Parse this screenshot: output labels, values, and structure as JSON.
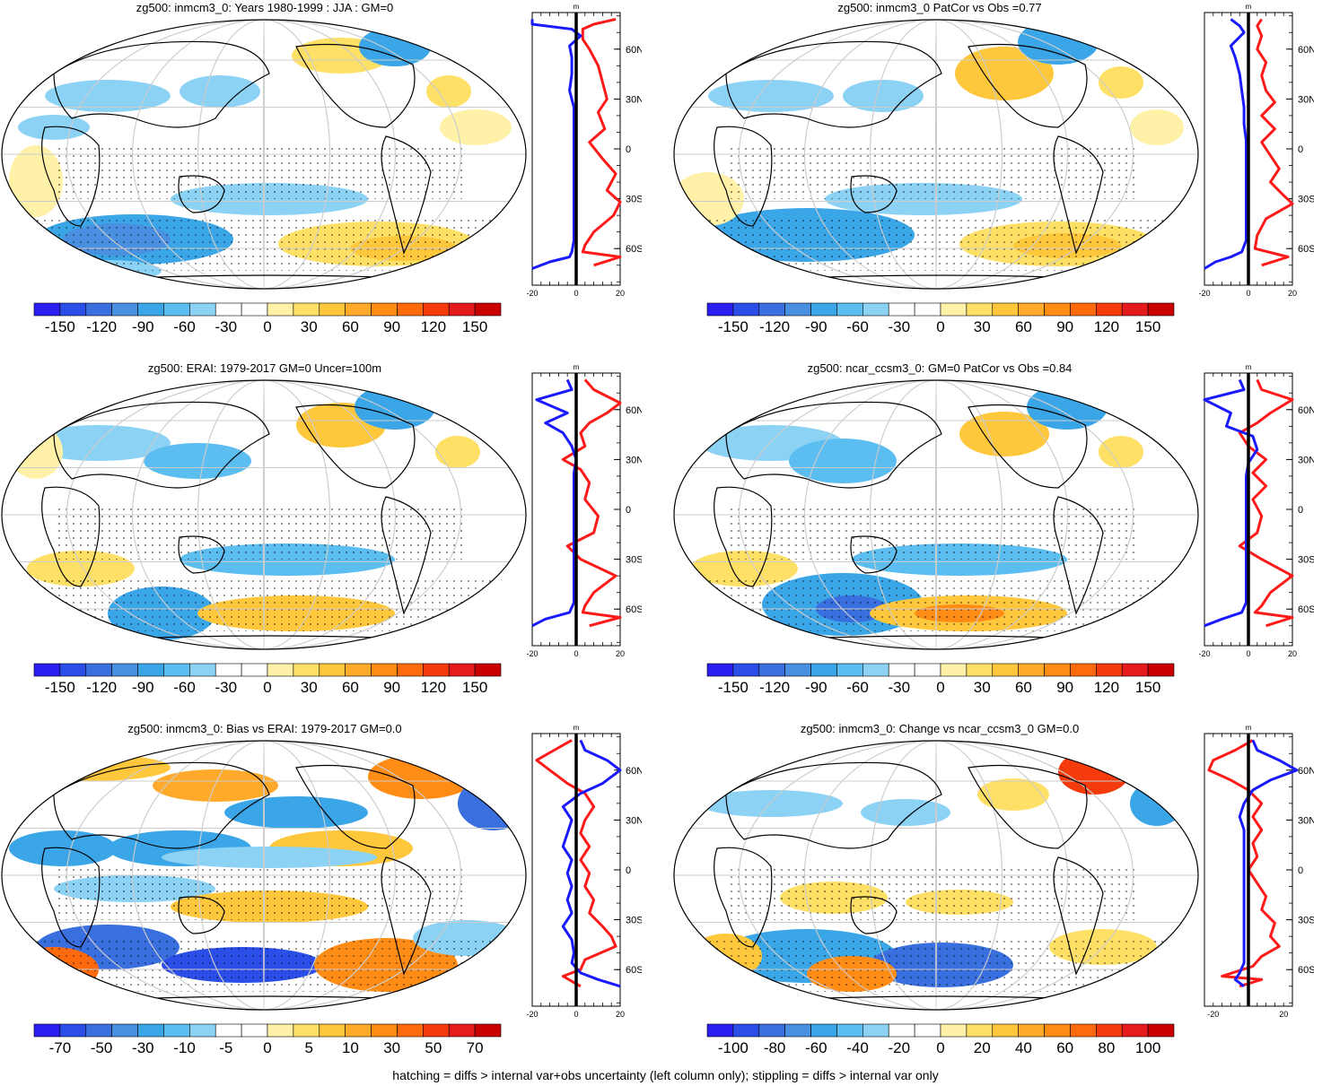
{
  "panels": [
    {
      "title": "zg500: inmcm3_0: Years 1980-1999 : JJA : GM=0",
      "colorbar": {
        "labels": [
          "-150",
          "-120",
          "-90",
          "-60",
          "-30",
          "0",
          "30",
          "60",
          "90",
          "120",
          "150"
        ]
      },
      "profile": {
        "unit": "m",
        "x_ticks": [
          "-20",
          "0",
          "20"
        ],
        "lat_labels": [
          "60N",
          "30N",
          "0",
          "30S",
          "60S"
        ],
        "blue_pts": [
          [
            -20,
            78
          ],
          [
            -20,
            75
          ],
          [
            -2,
            72
          ],
          [
            2,
            68
          ],
          [
            -3,
            62
          ],
          [
            -2,
            55
          ],
          [
            -2,
            45
          ],
          [
            -3,
            35
          ],
          [
            -1,
            25
          ],
          [
            -1,
            15
          ],
          [
            -1,
            5
          ],
          [
            -1,
            -5
          ],
          [
            -1,
            -15
          ],
          [
            -1,
            -25
          ],
          [
            -1,
            -35
          ],
          [
            -1,
            -45
          ],
          [
            -1,
            -55
          ],
          [
            -2,
            -62
          ],
          [
            -3,
            -65
          ],
          [
            -12,
            -68
          ],
          [
            -20,
            -72
          ]
        ],
        "red_pts": [
          [
            18,
            78
          ],
          [
            8,
            75
          ],
          [
            3,
            72
          ],
          [
            3,
            66
          ],
          [
            6,
            60
          ],
          [
            8,
            55
          ],
          [
            10,
            50
          ],
          [
            12,
            40
          ],
          [
            14,
            30
          ],
          [
            10,
            22
          ],
          [
            13,
            12
          ],
          [
            6,
            4
          ],
          [
            12,
            -6
          ],
          [
            18,
            -15
          ],
          [
            14,
            -25
          ],
          [
            20,
            -32
          ],
          [
            17,
            -40
          ],
          [
            8,
            -50
          ],
          [
            4,
            -58
          ],
          [
            3,
            -62
          ],
          [
            20,
            -65
          ],
          [
            8,
            -70
          ]
        ]
      },
      "map": {
        "stipple": true
      }
    },
    {
      "title": "zg500: inmcm3_0 PatCor vs Obs =0.77",
      "colorbar": {
        "labels": [
          "-150",
          "-120",
          "-90",
          "-60",
          "-30",
          "0",
          "30",
          "60",
          "90",
          "120",
          "150"
        ]
      },
      "profile": {
        "unit": "m",
        "x_ticks": [
          "-20",
          "0",
          "20"
        ],
        "lat_labels": [
          "60N",
          "30N",
          "0",
          "30S",
          "60S"
        ],
        "blue_pts": [
          [
            -8,
            78
          ],
          [
            -4,
            74
          ],
          [
            -2,
            70
          ],
          [
            -8,
            62
          ],
          [
            -6,
            55
          ],
          [
            -4,
            45
          ],
          [
            -3,
            35
          ],
          [
            -2,
            25
          ],
          [
            -2,
            15
          ],
          [
            -1,
            5
          ],
          [
            -1,
            -5
          ],
          [
            -1,
            -15
          ],
          [
            -1,
            -25
          ],
          [
            -1,
            -35
          ],
          [
            -1,
            -45
          ],
          [
            -1,
            -55
          ],
          [
            -3,
            -62
          ],
          [
            -8,
            -65
          ],
          [
            -15,
            -68
          ],
          [
            -20,
            -72
          ]
        ],
        "red_pts": [
          [
            6,
            78
          ],
          [
            4,
            74
          ],
          [
            6,
            68
          ],
          [
            4,
            60
          ],
          [
            8,
            52
          ],
          [
            6,
            44
          ],
          [
            8,
            35
          ],
          [
            12,
            28
          ],
          [
            6,
            20
          ],
          [
            12,
            12
          ],
          [
            6,
            4
          ],
          [
            10,
            -4
          ],
          [
            14,
            -12
          ],
          [
            10,
            -20
          ],
          [
            16,
            -28
          ],
          [
            20,
            -33
          ],
          [
            8,
            -42
          ],
          [
            4,
            -52
          ],
          [
            3,
            -60
          ],
          [
            18,
            -65
          ],
          [
            6,
            -70
          ]
        ]
      },
      "map": {
        "stipple": true
      }
    },
    {
      "title": "zg500: ERAI: 1979-2017 GM=0 Uncer=100m",
      "colorbar": {
        "labels": [
          "-150",
          "-120",
          "-90",
          "-60",
          "-30",
          "0",
          "30",
          "60",
          "90",
          "120",
          "150"
        ]
      },
      "profile": {
        "unit": "m",
        "x_ticks": [
          "-20",
          "0",
          "20"
        ],
        "lat_labels": [
          "60N",
          "30N",
          "0",
          "30S",
          "60S"
        ],
        "blue_pts": [
          [
            -4,
            78
          ],
          [
            -2,
            72
          ],
          [
            -18,
            66
          ],
          [
            -4,
            58
          ],
          [
            -14,
            52
          ],
          [
            -6,
            46
          ],
          [
            -2,
            38
          ],
          [
            0,
            30
          ],
          [
            -1,
            22
          ],
          [
            -1,
            12
          ],
          [
            -1,
            2
          ],
          [
            -1,
            -8
          ],
          [
            -1,
            -18
          ],
          [
            -1,
            -28
          ],
          [
            -1,
            -38
          ],
          [
            -1,
            -48
          ],
          [
            -1,
            -56
          ],
          [
            -3,
            -62
          ],
          [
            -14,
            -66
          ],
          [
            -20,
            -70
          ]
        ],
        "red_pts": [
          [
            4,
            78
          ],
          [
            8,
            72
          ],
          [
            20,
            64
          ],
          [
            14,
            58
          ],
          [
            6,
            52
          ],
          [
            2,
            46
          ],
          [
            4,
            38
          ],
          [
            -6,
            30
          ],
          [
            2,
            24
          ],
          [
            6,
            16
          ],
          [
            4,
            6
          ],
          [
            10,
            -4
          ],
          [
            8,
            -14
          ],
          [
            -4,
            -22
          ],
          [
            2,
            -30
          ],
          [
            18,
            -40
          ],
          [
            8,
            -50
          ],
          [
            4,
            -58
          ],
          [
            3,
            -62
          ],
          [
            20,
            -65
          ],
          [
            6,
            -70
          ]
        ]
      },
      "map": {
        "stipple": true
      }
    },
    {
      "title": "zg500: ncar_ccsm3_0: GM=0 PatCor vs Obs =0.84",
      "colorbar": {
        "labels": [
          "-150",
          "-120",
          "-90",
          "-60",
          "-30",
          "0",
          "30",
          "60",
          "90",
          "120",
          "150"
        ]
      },
      "profile": {
        "unit": "m",
        "x_ticks": [
          "-20",
          "0",
          "20"
        ],
        "lat_labels": [
          "60N",
          "30N",
          "0",
          "30S",
          "60S"
        ],
        "blue_pts": [
          [
            -4,
            78
          ],
          [
            -2,
            72
          ],
          [
            -20,
            66
          ],
          [
            -8,
            58
          ],
          [
            -10,
            50
          ],
          [
            2,
            44
          ],
          [
            4,
            36
          ],
          [
            0,
            28
          ],
          [
            -1,
            20
          ],
          [
            -1,
            10
          ],
          [
            -1,
            0
          ],
          [
            -1,
            -10
          ],
          [
            -1,
            -20
          ],
          [
            -1,
            -30
          ],
          [
            -1,
            -40
          ],
          [
            -1,
            -50
          ],
          [
            -1,
            -56
          ],
          [
            -3,
            -62
          ],
          [
            -12,
            -66
          ],
          [
            -20,
            -70
          ]
        ],
        "red_pts": [
          [
            4,
            78
          ],
          [
            6,
            72
          ],
          [
            20,
            66
          ],
          [
            10,
            58
          ],
          [
            4,
            52
          ],
          [
            -4,
            46
          ],
          [
            0,
            38
          ],
          [
            8,
            30
          ],
          [
            2,
            22
          ],
          [
            8,
            14
          ],
          [
            2,
            6
          ],
          [
            6,
            -4
          ],
          [
            4,
            -14
          ],
          [
            -4,
            -22
          ],
          [
            6,
            -30
          ],
          [
            20,
            -40
          ],
          [
            10,
            -50
          ],
          [
            6,
            -58
          ],
          [
            3,
            -62
          ],
          [
            20,
            -65
          ],
          [
            8,
            -70
          ]
        ]
      },
      "map": {
        "stipple": true
      }
    },
    {
      "title": "zg500: inmcm3_0: Bias vs ERAI: 1979-2017 GM=0.0",
      "colorbar": {
        "labels": [
          "-70",
          "-50",
          "-30",
          "-10",
          "-5",
          "0",
          "5",
          "10",
          "30",
          "50",
          "70"
        ]
      },
      "profile": {
        "unit": "m",
        "x_ticks": [
          "-20",
          "0",
          "20"
        ],
        "lat_labels": [
          "60N",
          "30N",
          "0",
          "30S",
          "60S"
        ],
        "blue_pts": [
          [
            2,
            78
          ],
          [
            4,
            72
          ],
          [
            14,
            66
          ],
          [
            20,
            60
          ],
          [
            12,
            52
          ],
          [
            2,
            46
          ],
          [
            -6,
            38
          ],
          [
            -2,
            30
          ],
          [
            -4,
            22
          ],
          [
            -6,
            14
          ],
          [
            -2,
            6
          ],
          [
            -4,
            -2
          ],
          [
            -2,
            -10
          ],
          [
            -4,
            -18
          ],
          [
            -2,
            -26
          ],
          [
            -6,
            -34
          ],
          [
            -2,
            -42
          ],
          [
            -1,
            -50
          ],
          [
            -2,
            -56
          ],
          [
            2,
            -62
          ],
          [
            10,
            -66
          ],
          [
            20,
            -70
          ]
        ],
        "red_pts": [
          [
            -2,
            78
          ],
          [
            -10,
            72
          ],
          [
            -18,
            66
          ],
          [
            -12,
            60
          ],
          [
            -4,
            52
          ],
          [
            4,
            46
          ],
          [
            8,
            38
          ],
          [
            4,
            30
          ],
          [
            2,
            22
          ],
          [
            6,
            14
          ],
          [
            2,
            6
          ],
          [
            6,
            -2
          ],
          [
            4,
            -10
          ],
          [
            8,
            -18
          ],
          [
            6,
            -26
          ],
          [
            12,
            -34
          ],
          [
            16,
            -40
          ],
          [
            18,
            -46
          ],
          [
            4,
            -54
          ],
          [
            2,
            -60
          ],
          [
            -6,
            -64
          ],
          [
            2,
            -70
          ]
        ]
      },
      "map": {
        "stipple": true
      }
    },
    {
      "title": "zg500: inmcm3_0: Change vs ncar_ccsm3_0 GM=0.0",
      "colorbar": {
        "labels": [
          "-100",
          "-80",
          "-60",
          "-40",
          "-20",
          "0",
          "20",
          "40",
          "60",
          "80",
          "100"
        ]
      },
      "profile": {
        "unit": "m",
        "x_ticks": [
          "-20",
          "20"
        ],
        "lat_labels": [
          "60N",
          "30N",
          "0",
          "30S",
          "60S"
        ],
        "blue_pts": [
          [
            2,
            78
          ],
          [
            4,
            72
          ],
          [
            14,
            66
          ],
          [
            22,
            60
          ],
          [
            10,
            54
          ],
          [
            2,
            48
          ],
          [
            -2,
            40
          ],
          [
            -4,
            32
          ],
          [
            -2,
            24
          ],
          [
            -2,
            16
          ],
          [
            -2,
            8
          ],
          [
            -2,
            0
          ],
          [
            -2,
            -8
          ],
          [
            -2,
            -16
          ],
          [
            -2,
            -24
          ],
          [
            -2,
            -32
          ],
          [
            -2,
            -40
          ],
          [
            -2,
            -48
          ],
          [
            -2,
            -56
          ],
          [
            -4,
            -62
          ],
          [
            -6,
            -66
          ],
          [
            -2,
            -70
          ]
        ],
        "red_pts": [
          [
            2,
            78
          ],
          [
            -6,
            72
          ],
          [
            -16,
            66
          ],
          [
            -18,
            60
          ],
          [
            -8,
            54
          ],
          [
            0,
            48
          ],
          [
            6,
            40
          ],
          [
            2,
            32
          ],
          [
            6,
            24
          ],
          [
            2,
            16
          ],
          [
            4,
            8
          ],
          [
            0,
            0
          ],
          [
            4,
            -8
          ],
          [
            8,
            -16
          ],
          [
            6,
            -24
          ],
          [
            12,
            -32
          ],
          [
            10,
            -40
          ],
          [
            14,
            -46
          ],
          [
            6,
            -52
          ],
          [
            2,
            -58
          ],
          [
            -12,
            -64
          ],
          [
            6,
            -66
          ],
          [
            -4,
            -70
          ]
        ]
      },
      "map": {
        "stipple": true
      }
    }
  ],
  "footer": "hatching = diffs > internal var+obs uncertainty (left column only); stippling = diffs > internal var only"
}
